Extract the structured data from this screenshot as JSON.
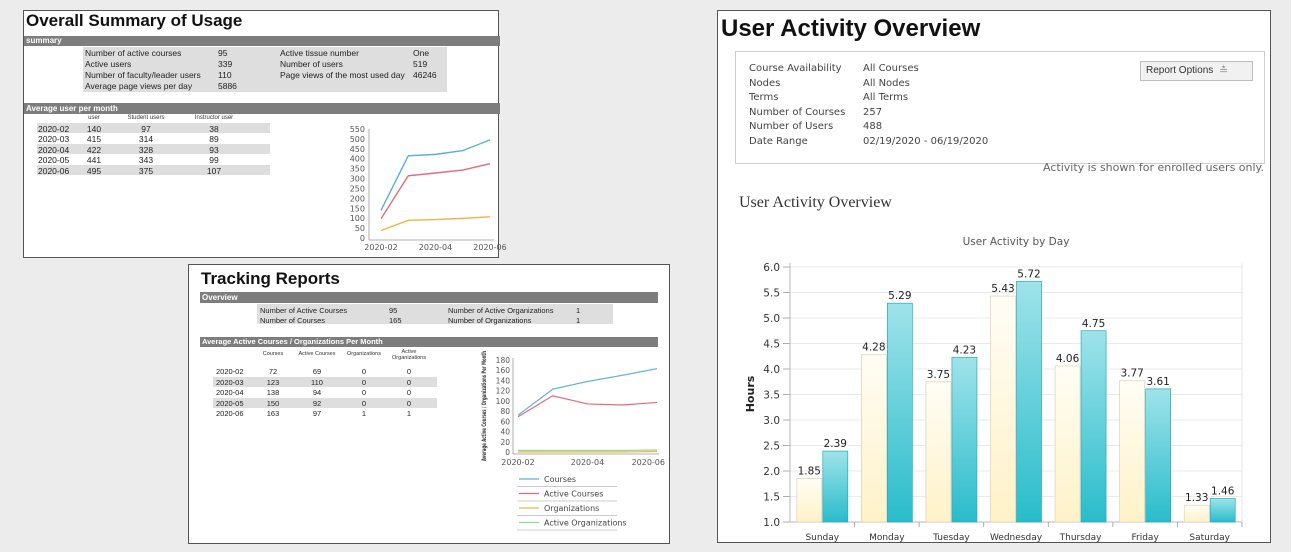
{
  "usage": {
    "title": "Overall Summary of Usage",
    "summary_header": "summary",
    "summary": [
      {
        "label": "Number of active courses",
        "value": "95"
      },
      {
        "label": "Active users",
        "value": "339"
      },
      {
        "label": "Number of faculty/leader users",
        "value": "110"
      },
      {
        "label": "Average page views per day",
        "value": "5886"
      }
    ],
    "summary_right": [
      {
        "label": "Active tissue number",
        "value": "One"
      },
      {
        "label": "Number of users",
        "value": "519"
      },
      {
        "label": "Page views of the most used day",
        "value": "46246"
      }
    ],
    "monthly_header": "Average user per month",
    "columns": [
      "user",
      "Student users",
      "Instructor user"
    ],
    "rows": [
      {
        "month": "2020-02",
        "user": "140",
        "student": "97",
        "instructor": "38"
      },
      {
        "month": "2020-03",
        "user": "415",
        "student": "314",
        "instructor": "89"
      },
      {
        "month": "2020-04",
        "user": "422",
        "student": "328",
        "instructor": "93"
      },
      {
        "month": "2020-05",
        "user": "441",
        "student": "343",
        "instructor": "99"
      },
      {
        "month": "2020-06",
        "user": "495",
        "student": "375",
        "instructor": "107"
      }
    ],
    "y_ticks": [
      "550",
      "500",
      "450",
      "400",
      "350",
      "300",
      "250",
      "200",
      "150",
      "100",
      "50",
      "0"
    ],
    "x_ticks": [
      "2020-02",
      "2020-04",
      "2020-06"
    ],
    "colors": {
      "user": "#5aafd6",
      "student": "#e46b78",
      "instructor": "#f2b24c"
    }
  },
  "tracking": {
    "title": "Tracking Reports",
    "overview_header": "Overview",
    "overview": [
      {
        "label": "Number of Active Courses",
        "value": "95",
        "label2": "Number of Active Organizations",
        "value2": "1"
      },
      {
        "label": "Number of Courses",
        "value": "165",
        "label2": "Number of Organizations",
        "value2": "1"
      }
    ],
    "monthly_header": "Average Active Courses / Organizations Per Month",
    "columns": [
      "Courses",
      "Active Courses",
      "Organizations",
      "Active\nOrganizations"
    ],
    "rows": [
      {
        "month": "2020-02",
        "courses": "72",
        "active_courses": "69",
        "orgs": "0",
        "active_orgs": "0"
      },
      {
        "month": "2020-03",
        "courses": "123",
        "active_courses": "110",
        "orgs": "0",
        "active_orgs": "0"
      },
      {
        "month": "2020-04",
        "courses": "138",
        "active_courses": "94",
        "orgs": "0",
        "active_orgs": "0"
      },
      {
        "month": "2020-05",
        "courses": "150",
        "active_courses": "92",
        "orgs": "0",
        "active_orgs": "0"
      },
      {
        "month": "2020-06",
        "courses": "163",
        "active_courses": "97",
        "orgs": "1",
        "active_orgs": "1"
      }
    ],
    "y_label": "Average Active Courses / Organizations Per Month",
    "y_ticks": [
      "180",
      "160",
      "140",
      "120",
      "100",
      "80",
      "60",
      "40",
      "20",
      "0"
    ],
    "x_ticks": [
      "2020-02",
      "2020-04",
      "2020-06"
    ],
    "legend": [
      "Courses",
      "Active Courses",
      "Organizations",
      "Active Organizations"
    ],
    "colors": {
      "courses": "#5aafd6",
      "active_courses": "#e46b78",
      "orgs": "#f2b24c",
      "active_orgs": "#8fd88f"
    }
  },
  "activity": {
    "title": "User Activity Overview",
    "info": [
      {
        "label": "Course Availability",
        "value": "All Courses"
      },
      {
        "label": "Nodes",
        "value": "All Nodes"
      },
      {
        "label": "Terms",
        "value": "All Terms"
      },
      {
        "label": "Number of Courses",
        "value": "257"
      },
      {
        "label": "Number of Users",
        "value": "488"
      },
      {
        "label": "Date Range",
        "value": "02/19/2020 - 06/19/2020"
      }
    ],
    "report_options": "Report Options",
    "enrolled_note": "Activity is shown for enrolled users only.",
    "section_title": "User Activity Overview",
    "chart_title": "User Activity by Day",
    "y_label": "Hours",
    "y_ticks": [
      "6.0",
      "5.5",
      "5.0",
      "4.5",
      "4.0",
      "3.5",
      "3.0",
      "2.5",
      "2.0",
      "1.5",
      "1.0"
    ],
    "bar_colors": {
      "light": "#fff2c8",
      "teal": "#29bccb"
    }
  },
  "chart_data": [
    {
      "type": "line",
      "x": [
        "2020-02",
        "2020-03",
        "2020-04",
        "2020-05",
        "2020-06"
      ],
      "series": [
        {
          "name": "user",
          "values": [
            140,
            415,
            422,
            441,
            495
          ]
        },
        {
          "name": "Student users",
          "values": [
            97,
            314,
            328,
            343,
            375
          ]
        },
        {
          "name": "Instructor user",
          "values": [
            38,
            89,
            93,
            99,
            107
          ]
        }
      ],
      "ylim": [
        0,
        550
      ],
      "x_tick_labels": [
        "2020-02",
        "2020-04",
        "2020-06"
      ],
      "grid": false
    },
    {
      "type": "line",
      "ylabel": "Average Active Courses / Organizations Per Month",
      "x": [
        "2020-02",
        "2020-03",
        "2020-04",
        "2020-05",
        "2020-06"
      ],
      "series": [
        {
          "name": "Courses",
          "values": [
            72,
            123,
            138,
            150,
            163
          ]
        },
        {
          "name": "Active Courses",
          "values": [
            69,
            110,
            94,
            92,
            97
          ]
        },
        {
          "name": "Organizations",
          "values": [
            0,
            0,
            0,
            0,
            1
          ]
        },
        {
          "name": "Active Organizations",
          "values": [
            0,
            0,
            0,
            0,
            1
          ]
        }
      ],
      "ylim": [
        0,
        180
      ],
      "x_tick_labels": [
        "2020-02",
        "2020-04",
        "2020-06"
      ],
      "legend": "bottom"
    },
    {
      "type": "bar",
      "title": "User Activity by Day",
      "ylabel": "Hours",
      "categories": [
        "Sunday",
        "Monday",
        "Tuesday",
        "Wednesday",
        "Thursday",
        "Friday",
        "Saturday"
      ],
      "series": [
        {
          "values": [
            1.85,
            4.28,
            3.75,
            5.43,
            4.06,
            3.77,
            1.33
          ]
        },
        {
          "values": [
            2.39,
            5.29,
            4.23,
            5.72,
            4.75,
            3.61,
            1.46
          ]
        }
      ],
      "ylim": [
        1.0,
        6.0
      ],
      "grid": true
    }
  ]
}
